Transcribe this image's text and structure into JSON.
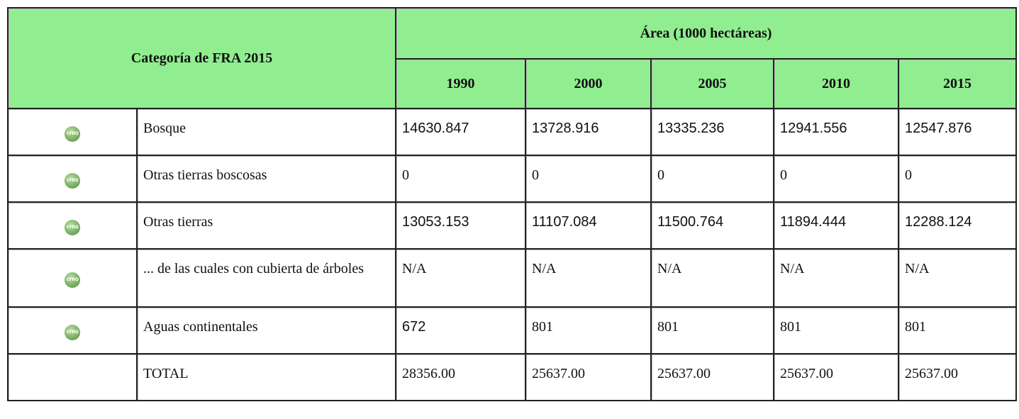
{
  "table": {
    "header": {
      "category": "Categoría de FRA 2015",
      "area": "Área (1000 hectáreas)",
      "years": [
        "1990",
        "2000",
        "2005",
        "2010",
        "2015"
      ]
    },
    "rows": [
      {
        "icon": "CFRQ",
        "label": "Bosque",
        "values": [
          "14630.847",
          "13728.916",
          "13335.236",
          "12941.556",
          "12547.876"
        ]
      },
      {
        "icon": "CFRQ",
        "label": "Otras tierras boscosas",
        "values": [
          "0",
          "0",
          "0",
          "0",
          "0"
        ]
      },
      {
        "icon": "CFRQ",
        "label": "Otras tierras",
        "values": [
          "13053.153",
          "11107.084",
          "11500.764",
          "11894.444",
          "12288.124"
        ]
      },
      {
        "icon": "CFRQ",
        "label": "... de las cuales con cubierta de árboles",
        "values": [
          "N/A",
          "N/A",
          "N/A",
          "N/A",
          "N/A"
        ]
      },
      {
        "icon": "CFRQ",
        "label": "Aguas continentales",
        "values": [
          "672",
          "801",
          "801",
          "801",
          "801"
        ]
      },
      {
        "label": "TOTAL",
        "values": [
          "28356.00",
          "25637.00",
          "25637.00",
          "25637.00",
          "25637.00"
        ]
      }
    ]
  }
}
